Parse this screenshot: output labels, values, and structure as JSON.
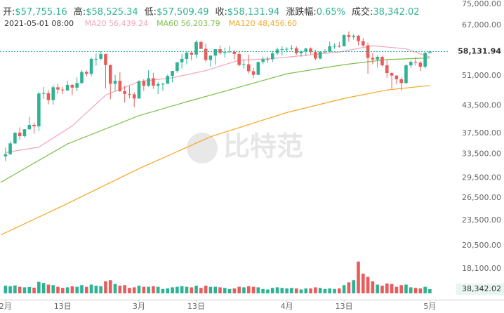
{
  "chart_data": {
    "type": "candlestick",
    "header": {
      "items": [
        {
          "label": "开:",
          "value": "$57,755.16"
        },
        {
          "label": "高:",
          "value": "$58,525.34"
        },
        {
          "label": "低:",
          "value": "$57,509.49"
        },
        {
          "label": "收:",
          "value": "$58,131.94"
        },
        {
          "label": "涨跌幅:",
          "value": "0.65%"
        },
        {
          "label": "成交:",
          "value": "38,342.02"
        }
      ],
      "date": "2021-05-01 08:00"
    },
    "watermark": "比特范",
    "up_color": "#2db393",
    "down_color": "#ea5b5b",
    "log_scale": true,
    "grid": false,
    "x": [
      "2021-02-01",
      "2021-02-02",
      "2021-02-03",
      "2021-02-04",
      "2021-02-05",
      "2021-02-06",
      "2021-02-07",
      "2021-02-08",
      "2021-02-09",
      "2021-02-10",
      "2021-02-11",
      "2021-02-12",
      "2021-02-13",
      "2021-02-14",
      "2021-02-15",
      "2021-02-16",
      "2021-02-17",
      "2021-02-18",
      "2021-02-19",
      "2021-02-20",
      "2021-02-21",
      "2021-02-22",
      "2021-02-23",
      "2021-02-24",
      "2021-02-25",
      "2021-02-26",
      "2021-02-27",
      "2021-02-28",
      "2021-03-01",
      "2021-03-02",
      "2021-03-03",
      "2021-03-04",
      "2021-03-05",
      "2021-03-06",
      "2021-03-07",
      "2021-03-08",
      "2021-03-09",
      "2021-03-10",
      "2021-03-11",
      "2021-03-12",
      "2021-03-13",
      "2021-03-14",
      "2021-03-15",
      "2021-03-16",
      "2021-03-17",
      "2021-03-18",
      "2021-03-19",
      "2021-03-20",
      "2021-03-21",
      "2021-03-22",
      "2021-03-23",
      "2021-03-24",
      "2021-03-25",
      "2021-03-26",
      "2021-03-27",
      "2021-03-28",
      "2021-03-29",
      "2021-03-30",
      "2021-03-31",
      "2021-04-01",
      "2021-04-02",
      "2021-04-03",
      "2021-04-04",
      "2021-04-05",
      "2021-04-06",
      "2021-04-07",
      "2021-04-08",
      "2021-04-09",
      "2021-04-10",
      "2021-04-11",
      "2021-04-12",
      "2021-04-13",
      "2021-04-14",
      "2021-04-15",
      "2021-04-16",
      "2021-04-17",
      "2021-04-18",
      "2021-04-19",
      "2021-04-20",
      "2021-04-21",
      "2021-04-22",
      "2021-04-23",
      "2021-04-24",
      "2021-04-25",
      "2021-04-26",
      "2021-04-27",
      "2021-04-28",
      "2021-04-29",
      "2021-04-30",
      "2021-05-01"
    ],
    "open": [
      33100,
      33500,
      35500,
      37600,
      36900,
      38300,
      39200,
      38900,
      46400,
      46500,
      44800,
      48000,
      47400,
      47200,
      48600,
      47900,
      49100,
      52100,
      51600,
      55900,
      55900,
      57400,
      54100,
      48900,
      49700,
      47000,
      46300,
      46200,
      45200,
      49600,
      48400,
      50400,
      48400,
      48800,
      48900,
      51000,
      52400,
      54900,
      55900,
      57800,
      57200,
      61200,
      59000,
      55600,
      56900,
      58900,
      57700,
      58000,
      58100,
      57400,
      54100,
      54300,
      52300,
      51300,
      55000,
      55800,
      55800,
      57600,
      58800,
      58900,
      59000,
      59200,
      57600,
      58200,
      59100,
      58000,
      56000,
      58100,
      58100,
      59800,
      59900,
      59800,
      63500,
      62900,
      63300,
      61500,
      60100,
      56200,
      55700,
      56500,
      54000,
      51800,
      51100,
      50100,
      49100,
      54000,
      55000,
      54800,
      53600,
      57755.16
    ],
    "high": [
      34700,
      35900,
      37700,
      38700,
      38300,
      40900,
      39700,
      46800,
      48100,
      47300,
      48600,
      48900,
      48100,
      49700,
      48900,
      50600,
      52600,
      52500,
      56300,
      57500,
      58300,
      57400,
      54200,
      51300,
      52000,
      48400,
      48300,
      46700,
      49800,
      50100,
      52600,
      51800,
      49400,
      49200,
      51400,
      52400,
      54900,
      57400,
      58100,
      58000,
      61800,
      61700,
      60600,
      56900,
      58900,
      60100,
      59400,
      59900,
      58600,
      58400,
      55800,
      57200,
      53200,
      55100,
      56600,
      56600,
      58400,
      59400,
      59800,
      59500,
      60200,
      59800,
      58500,
      59300,
      59500,
      58700,
      58200,
      58900,
      61300,
      60700,
      61200,
      63800,
      64800,
      63800,
      63600,
      62500,
      61000,
      57600,
      57000,
      56800,
      55500,
      52100,
      51200,
      50600,
      54300,
      55400,
      56400,
      55200,
      57900,
      58525.34
    ],
    "low": [
      32300,
      33400,
      35400,
      36200,
      36600,
      38200,
      37400,
      37900,
      45100,
      43800,
      43700,
      46300,
      46300,
      47000,
      46000,
      47000,
      48900,
      50900,
      50900,
      53900,
      55500,
      47700,
      45000,
      47100,
      46800,
      44200,
      45200,
      43100,
      45100,
      47100,
      48100,
      47600,
      46300,
      47100,
      48900,
      49300,
      51900,
      53100,
      54300,
      55500,
      56100,
      59000,
      55000,
      53600,
      54200,
      57100,
      56300,
      57900,
      55700,
      53700,
      53000,
      51700,
      50400,
      51300,
      54300,
      54700,
      55000,
      57000,
      56900,
      57900,
      58500,
      57100,
      56500,
      56800,
      57300,
      55500,
      55800,
      57700,
      57900,
      59000,
      59400,
      59800,
      61300,
      62000,
      60100,
      59600,
      51600,
      54300,
      53400,
      53700,
      50500,
      47600,
      48800,
      47100,
      48900,
      53300,
      53900,
      52400,
      53100,
      57509.49
    ],
    "close": [
      33500,
      35500,
      37600,
      36900,
      38300,
      39200,
      38900,
      46400,
      46500,
      44800,
      48000,
      47400,
      47200,
      48600,
      47900,
      49100,
      52100,
      51600,
      55900,
      55900,
      57400,
      54100,
      48900,
      49700,
      47000,
      46300,
      46200,
      45200,
      49600,
      48400,
      50400,
      48400,
      48800,
      48900,
      51000,
      52400,
      54900,
      55900,
      57800,
      57200,
      61200,
      59000,
      55600,
      56900,
      58900,
      57700,
      58000,
      58100,
      57400,
      54100,
      54300,
      52300,
      51300,
      55000,
      55800,
      55800,
      57600,
      58800,
      58900,
      59000,
      59200,
      57600,
      58200,
      59100,
      58000,
      56000,
      58100,
      58100,
      59800,
      59900,
      59800,
      63500,
      62900,
      63300,
      61500,
      60100,
      56200,
      55700,
      56500,
      54000,
      51800,
      51100,
      50100,
      49100,
      54000,
      55000,
      54800,
      53600,
      57755.16,
      58131.94
    ],
    "volume": [
      70000,
      65000,
      72000,
      60000,
      55000,
      58000,
      52000,
      105000,
      95000,
      80000,
      75000,
      60000,
      50000,
      55000,
      65000,
      60000,
      75000,
      60000,
      80000,
      70000,
      65000,
      110000,
      120000,
      85000,
      70000,
      75000,
      50000,
      55000,
      70000,
      60000,
      60000,
      65000,
      60000,
      40000,
      45000,
      55000,
      60000,
      65000,
      60000,
      55000,
      70000,
      50000,
      70000,
      60000,
      60000,
      55000,
      50000,
      40000,
      45000,
      60000,
      55000,
      65000,
      60000,
      55000,
      40000,
      35000,
      50000,
      55000,
      50000,
      45000,
      50000,
      45000,
      35000,
      45000,
      45000,
      55000,
      50000,
      40000,
      45000,
      40000,
      45000,
      75000,
      100000,
      120000,
      290000,
      180000,
      150000,
      110000,
      80000,
      70000,
      90000,
      85000,
      60000,
      75000,
      80000,
      55000,
      50000,
      45000,
      60000,
      38342.02
    ],
    "series": [
      {
        "name": "MA20",
        "color": "#f3a5b6",
        "last_label": "56,439.24",
        "x": [
          "2021-02-01",
          "2021-02-08",
          "2021-02-15",
          "2021-02-22",
          "2021-03-01",
          "2021-03-08",
          "2021-03-15",
          "2021-03-22",
          "2021-03-29",
          "2021-04-05",
          "2021-04-12",
          "2021-04-19",
          "2021-04-26",
          "2021-05-01"
        ],
        "values": [
          33800,
          34800,
          39000,
          46000,
          49500,
          50500,
          52500,
          55500,
          56000,
          57000,
          58000,
          60000,
          59000,
          56439.24
        ]
      },
      {
        "name": "MA60",
        "color": "#7cbf4c",
        "last_label": "56,203.79",
        "x": [
          "2021-01-31",
          "2021-02-14",
          "2021-03-01",
          "2021-03-11",
          "2021-03-16",
          "2021-04-01",
          "2021-04-13",
          "2021-04-22",
          "2021-05-01"
        ],
        "values": [
          28800,
          35400,
          41200,
          44400,
          46000,
          51600,
          54200,
          55700,
          56203.79
        ]
      },
      {
        "name": "MA120",
        "color": "#f5a623",
        "last_label": "48,456.60",
        "x": [
          "2021-01-31",
          "2021-02-14",
          "2021-03-01",
          "2021-03-16",
          "2021-04-01",
          "2021-04-13",
          "2021-04-22",
          "2021-05-01"
        ],
        "values": [
          21700,
          25700,
          31000,
          36800,
          41900,
          45200,
          47300,
          48456.6
        ]
      }
    ],
    "last_price_label": "58,131.94",
    "last_volume_label": "38,342.02",
    "ylim": [
      17300,
      76700
    ],
    "yticks": [
      {
        "value": 75000,
        "label": "75,000.00"
      },
      {
        "value": 67000,
        "label": "67,000.00"
      },
      {
        "value": 51000,
        "label": "51,000.00"
      },
      {
        "value": 43500,
        "label": "43,500.00"
      },
      {
        "value": 37500,
        "label": "37,500.00"
      },
      {
        "value": 33500,
        "label": "33,500.00"
      },
      {
        "value": 29500,
        "label": "29,500.00"
      },
      {
        "value": 26500,
        "label": "26,500.00"
      },
      {
        "value": 23500,
        "label": "23,500.00"
      },
      {
        "value": 20500,
        "label": "20,500.00"
      },
      {
        "value": 18100,
        "label": "18,100.00"
      }
    ],
    "volume_ylim": [
      0,
      320000
    ],
    "xlim": [
      "2021-01-31",
      "2021-05-03"
    ],
    "xticks": [
      {
        "value": "2021-02-01",
        "label": "2月"
      },
      {
        "value": "2021-02-13",
        "label": "13日"
      },
      {
        "value": "2021-03-01",
        "label": "3月"
      },
      {
        "value": "2021-03-13",
        "label": "13日"
      },
      {
        "value": "2021-04-01",
        "label": "4月"
      },
      {
        "value": "2021-04-13",
        "label": "13日"
      },
      {
        "value": "2021-05-01",
        "label": "5月"
      }
    ]
  }
}
